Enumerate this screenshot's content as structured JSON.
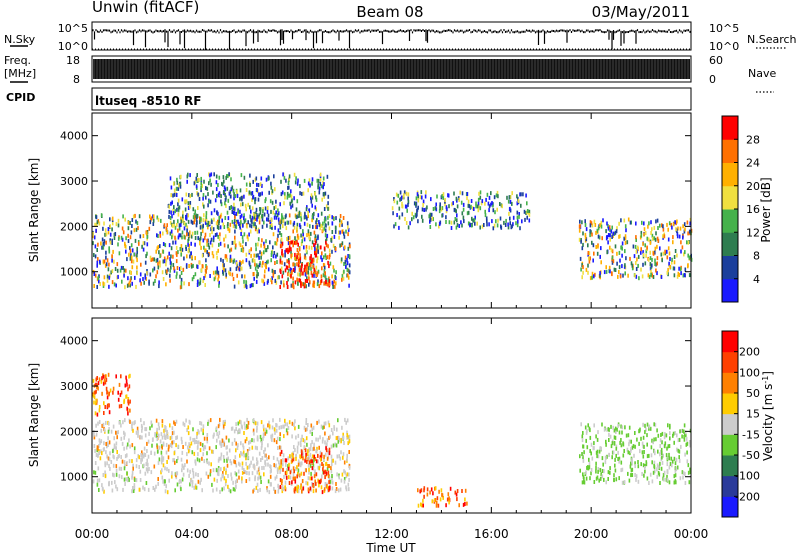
{
  "header": {
    "station": "Unwin (fitACF)",
    "beam": "Beam 08",
    "date": "03/May/2011"
  },
  "sky_panel": {
    "left_label": "N.Sky",
    "right_label": "N.Search",
    "left_ticks": [
      "10^5",
      "10^0"
    ],
    "right_ticks": [
      "10^5",
      "10^0"
    ]
  },
  "freq_panel": {
    "left_label_1": "Freq.",
    "left_label_2": "[MHz]",
    "right_label": "Nave",
    "left_ticks": [
      "18",
      "8"
    ],
    "right_ticks": [
      "60",
      "0"
    ]
  },
  "cpid": {
    "label": "CPID",
    "value": "ltuseq -8510 RF"
  },
  "chart_data": [
    {
      "type": "heatmap",
      "name": "power-panel",
      "ylabel": "Slant Range [km]",
      "ylim": [
        200,
        4500
      ],
      "yticks": [
        1000,
        2000,
        3000,
        4000
      ],
      "xlim": [
        0,
        24
      ],
      "colorbar": {
        "label": "Power [dB]",
        "range": [
          0,
          32
        ],
        "ticks": [
          "4",
          "8",
          "12",
          "16",
          "20",
          "24",
          "28"
        ],
        "colors": [
          "#1a1aff",
          "#1b3f9c",
          "#2e7d50",
          "#45b24b",
          "#f0e040",
          "#ffb000",
          "#ff7000",
          "#ff0000"
        ]
      },
      "echo_regions": [
        {
          "t_start": 0.0,
          "t_end": 10.3,
          "r_start": 700,
          "r_end": 2300,
          "level": "mixed"
        },
        {
          "t_start": 3.0,
          "t_end": 9.5,
          "r_start": 2000,
          "r_end": 3200,
          "level": "weak"
        },
        {
          "t_start": 7.5,
          "t_end": 9.5,
          "r_start": 700,
          "r_end": 1700,
          "level": "strong"
        },
        {
          "t_start": 12.0,
          "t_end": 17.5,
          "r_start": 2000,
          "r_end": 2800,
          "level": "weak"
        },
        {
          "t_start": 19.5,
          "t_end": 24.0,
          "r_start": 900,
          "r_end": 2200,
          "level": "mixed"
        }
      ]
    },
    {
      "type": "heatmap",
      "name": "velocity-panel",
      "ylabel": "Slant Range [km]",
      "xlabel": "Time UT",
      "ylim": [
        200,
        4500
      ],
      "yticks": [
        1000,
        2000,
        3000,
        4000
      ],
      "xlim": [
        0,
        24
      ],
      "xticks": [
        "00:00",
        "04:00",
        "08:00",
        "12:00",
        "16:00",
        "20:00",
        "00:00"
      ],
      "colorbar": {
        "label": "Velocity [m s",
        "label_sup": "-1",
        "label_end": "]",
        "ticks": [
          "200",
          "100",
          "50",
          "15",
          "-15",
          "-50",
          "-100",
          "-200"
        ],
        "colors": [
          "#1a1aff",
          "#2a3a9a",
          "#2e7d50",
          "#66cc33",
          "#cccccc",
          "#ffcc00",
          "#ff8000",
          "#ff4000",
          "#ff0000"
        ]
      },
      "echo_regions": [
        {
          "t_start": 0.0,
          "t_end": 10.3,
          "r_start": 700,
          "r_end": 2300,
          "level": "near-zero"
        },
        {
          "t_start": 0.0,
          "t_end": 1.5,
          "r_start": 2400,
          "r_end": 3300,
          "level": "negative"
        },
        {
          "t_start": 7.5,
          "t_end": 9.5,
          "r_start": 700,
          "r_end": 1700,
          "level": "negative"
        },
        {
          "t_start": 13.0,
          "t_end": 15.0,
          "r_start": 400,
          "r_end": 800,
          "level": "negative"
        },
        {
          "t_start": 19.5,
          "t_end": 24.0,
          "r_start": 900,
          "r_end": 2200,
          "level": "positive"
        }
      ]
    }
  ]
}
